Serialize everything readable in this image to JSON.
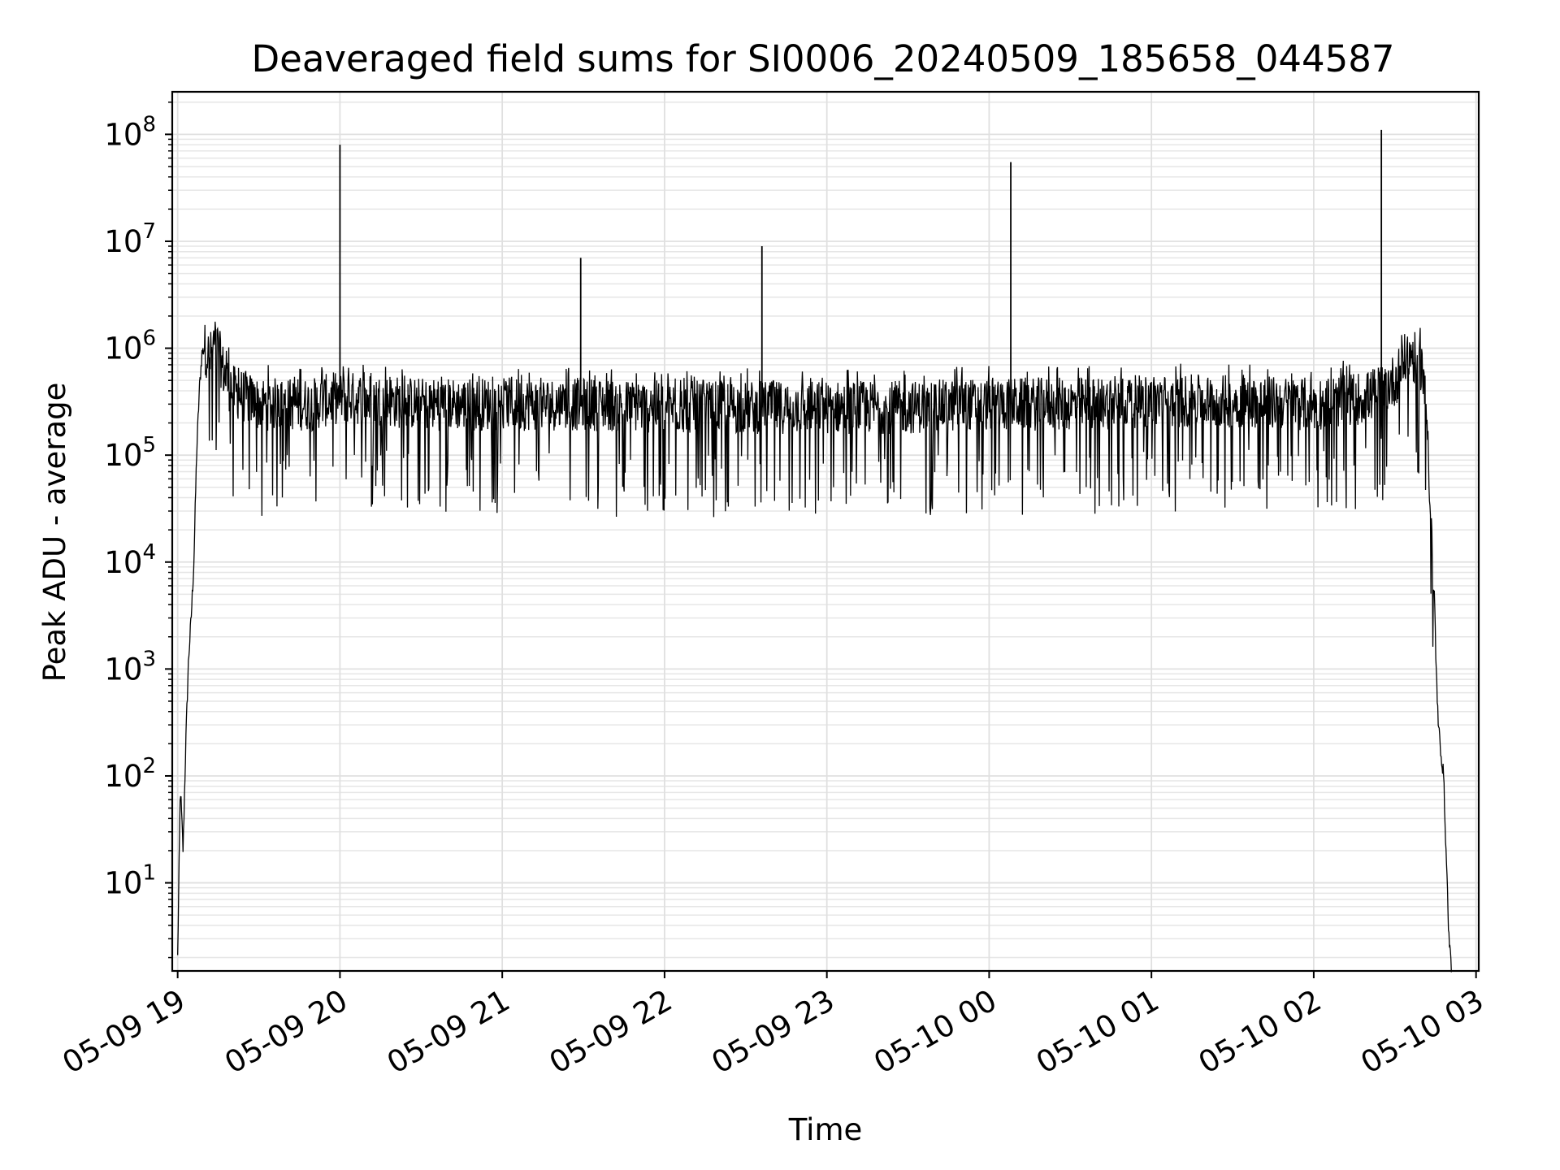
{
  "chart_data": {
    "type": "line",
    "title": "Deaveraged field sums for SI0006_20240509_185658_044587",
    "xlabel": "Time",
    "ylabel": "Peak ADU - average",
    "yscale": "log",
    "ylim": [
      1.5,
      250000000
    ],
    "xlim": [
      "05-09 18:58",
      "05-10 03:01"
    ],
    "grid": true,
    "x_ticks": [
      "05-09 19",
      "05-09 20",
      "05-09 21",
      "05-09 22",
      "05-09 23",
      "05-10 00",
      "05-10 01",
      "05-10 02",
      "05-10 03"
    ],
    "y_ticks": [
      "10^1",
      "10^2",
      "10^3",
      "10^4",
      "10^5",
      "10^6",
      "10^7",
      "10^8"
    ],
    "line_color": "#000000",
    "series": [
      {
        "x": [
          "05-09 19:00",
          "05-09 19:01",
          "05-09 19:02",
          "05-09 19:03",
          "05-09 19:04",
          "05-09 19:05",
          "05-09 19:06",
          "05-09 19:07",
          "05-09 19:08",
          "05-09 19:09",
          "05-09 19:10",
          "05-09 19:12",
          "05-09 19:14",
          "05-09 19:17",
          "05-09 19:20",
          "05-09 19:25",
          "05-09 19:30",
          "05-09 19:40",
          "05-09 19:50",
          "05-09 20:00",
          "05-09 20:30",
          "05-09 21:00",
          "05-09 21:30",
          "05-09 22:00",
          "05-09 22:30",
          "05-09 23:00",
          "05-09 23:30",
          "05-10 00:00",
          "05-10 00:30",
          "05-10 01:00",
          "05-10 01:30",
          "05-10 02:00",
          "05-10 02:20",
          "05-10 02:30",
          "05-10 02:35",
          "05-10 02:40",
          "05-10 02:42",
          "05-10 02:44",
          "05-10 02:46",
          "05-10 02:48",
          "05-10 02:50",
          "05-10 02:51"
        ],
        "y": [
          2,
          80,
          20,
          200,
          1200,
          3000,
          10000,
          100000,
          400000,
          900000,
          1000000,
          800000,
          1200000,
          600000,
          400000,
          350000,
          300000,
          300000,
          300000,
          350000,
          300000,
          300000,
          300000,
          280000,
          280000,
          280000,
          280000,
          300000,
          300000,
          320000,
          320000,
          300000,
          350000,
          500000,
          900000,
          700000,
          200000,
          10000,
          300,
          100,
          3,
          1.5
        ]
      }
    ],
    "spikes": [
      {
        "x": "05-09 20:00",
        "y": 80000000
      },
      {
        "x": "05-09 21:29",
        "y": 7000000
      },
      {
        "x": "05-09 22:36",
        "y": 9000000
      },
      {
        "x": "05-10 00:08",
        "y": 55000000
      },
      {
        "x": "05-10 02:25",
        "y": 110000000
      }
    ]
  }
}
